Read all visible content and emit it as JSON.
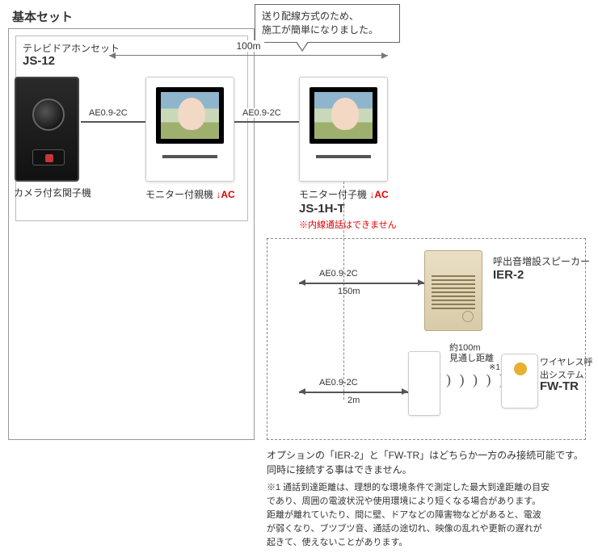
{
  "titles": {
    "basic_set": "基本セット",
    "doorphone_set": "テレビドアホンセット",
    "model_main": "JS-12"
  },
  "balloon": "送り配線方式のため、\n施工が簡単になりました。",
  "dimension_100m": "100m",
  "cables": {
    "door_to_main": "AE0.9-2C",
    "main_to_sub": "AE0.9-2C",
    "to_ier": "AE0.9-2C",
    "to_fw": "AE0.9-2C"
  },
  "captions": {
    "door_unit": "カメラ付玄関子機",
    "monitor_main": "モニター付親機",
    "monitor_sub": "モニター付子機",
    "ac_mark": "↓AC"
  },
  "sub_monitor": {
    "model": "JS-1H-T",
    "note": "※内線通話はできません"
  },
  "options": {
    "ier": {
      "caption": "呼出音増設スピーカー",
      "model": "IER-2",
      "distance": "150m"
    },
    "fw": {
      "caption": "ワイヤレス呼出システム",
      "model": "FW-TR",
      "wire_distance": "2m",
      "air_distance": "約100m\n見通し距離",
      "ref_mark": "※1"
    }
  },
  "wave_glyph": ") ) ) ) )",
  "footer_option_note": "オプションの「IER-2」と「FW-TR」はどちらか一方のみ接続可能です。\n同時に接続する事はできません。",
  "footer_ref1": "※1 通話到達距離は、理想的な環境条件で測定した最大到達距離の目安\nであり、周囲の電波状況や使用環境により短くなる場合があります。\n距離が離れていたり、間に壁、ドアなどの障害物などがあると、電波\nが弱くなり、ブツブツ音、通話の途切れ、映像の乱れや更新の遅れが\n起きて、使えないことがあります。",
  "colors": {
    "accent_red": "#d00",
    "wire": "#555",
    "box_border": "#999",
    "dash_border": "#888"
  }
}
